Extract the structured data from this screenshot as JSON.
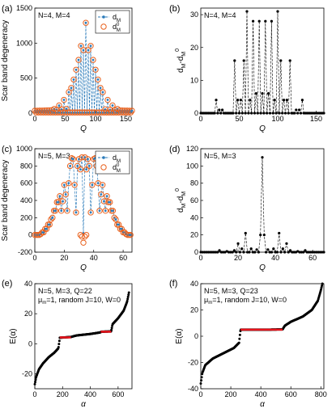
{
  "chart_data": [
    {
      "id": "a",
      "panel_label": "(a)",
      "type": "scatter",
      "annotation": "N=4, M=4",
      "xlabel": "Q",
      "ylabel": "Scar band degeneracy",
      "xlim": [
        0,
        160
      ],
      "ylim": [
        0,
        1500
      ],
      "xticks": [
        0,
        50,
        100,
        150
      ],
      "yticks": [
        0,
        500,
        1000,
        1500
      ],
      "legend": {
        "placement": "top-right",
        "entries": [
          "d",
          "d"
        ],
        "entry_sub": [
          "M",
          "M"
        ],
        "entry_sup": [
          "",
          "0"
        ]
      },
      "colors": {
        "d_M": "#2b7bba",
        "d0_M": "#e8601c"
      },
      "highlights": [
        {
          "x": 84,
          "y": 1290
        },
        {
          "x": 76,
          "y": 960
        },
        {
          "x": 92,
          "y": 960
        },
        {
          "x": 80,
          "y": 900
        },
        {
          "x": 88,
          "y": 900
        },
        {
          "x": 72,
          "y": 760
        },
        {
          "x": 96,
          "y": 760
        },
        {
          "x": 68,
          "y": 620
        },
        {
          "x": 100,
          "y": 620
        },
        {
          "x": 64,
          "y": 480
        },
        {
          "x": 104,
          "y": 480
        },
        {
          "x": 60,
          "y": 360
        },
        {
          "x": 108,
          "y": 360
        },
        {
          "x": 56,
          "y": 300
        },
        {
          "x": 112,
          "y": 300
        },
        {
          "x": 48,
          "y": 190
        },
        {
          "x": 120,
          "y": 190
        },
        {
          "x": 40,
          "y": 110
        },
        {
          "x": 128,
          "y": 110
        },
        {
          "x": 32,
          "y": 60
        },
        {
          "x": 136,
          "y": 60
        }
      ]
    },
    {
      "id": "b",
      "panel_label": "(b)",
      "type": "scatter",
      "annotation": "N=4, M=4",
      "xlabel": "Q",
      "ylabel_parts": {
        "a": "d",
        "a_sub": "M",
        "mid": "-d",
        "b_sub": "M",
        "b_sup": "0"
      },
      "xlim": [
        0,
        160
      ],
      "ylim": [
        0,
        32
      ],
      "xticks": [
        0,
        50,
        100,
        150
      ],
      "yticks": [
        0,
        10,
        20,
        30
      ],
      "spikes": [
        {
          "x": 20,
          "y": 4
        },
        {
          "x": 24,
          "y": 1
        },
        {
          "x": 28,
          "y": 1
        },
        {
          "x": 44,
          "y": 16
        },
        {
          "x": 48,
          "y": 4
        },
        {
          "x": 52,
          "y": 4
        },
        {
          "x": 56,
          "y": 16
        },
        {
          "x": 60,
          "y": 31
        },
        {
          "x": 64,
          "y": 4
        },
        {
          "x": 68,
          "y": 28
        },
        {
          "x": 72,
          "y": 6
        },
        {
          "x": 76,
          "y": 28
        },
        {
          "x": 80,
          "y": 6
        },
        {
          "x": 84,
          "y": 28
        },
        {
          "x": 88,
          "y": 6
        },
        {
          "x": 92,
          "y": 28
        },
        {
          "x": 96,
          "y": 4
        },
        {
          "x": 100,
          "y": 31
        },
        {
          "x": 104,
          "y": 16
        },
        {
          "x": 108,
          "y": 4
        },
        {
          "x": 112,
          "y": 4
        },
        {
          "x": 116,
          "y": 16
        },
        {
          "x": 124,
          "y": 1
        },
        {
          "x": 128,
          "y": 1
        },
        {
          "x": 132,
          "y": 4
        }
      ]
    },
    {
      "id": "c",
      "panel_label": "(c)",
      "type": "scatter",
      "annotation": "N=5, M=3",
      "xlabel": "Q",
      "ylabel": "Scar band degeneracy",
      "xlim": [
        0,
        66
      ],
      "ylim": [
        -200,
        1000
      ],
      "xticks": [
        0,
        20,
        40,
        60
      ],
      "yticks": [
        -200,
        0,
        200,
        400,
        600,
        800,
        1000
      ],
      "legend": {
        "placement": "top-right",
        "entries": [
          "d",
          "d"
        ],
        "entry_sub": [
          "M",
          "M"
        ],
        "entry_sup": [
          "",
          "0"
        ]
      },
      "colors": {
        "d_M": "#2b7bba",
        "d0_M": "#e8601c"
      },
      "d_M": [
        0,
        0,
        0,
        0,
        10,
        30,
        30,
        70,
        70,
        120,
        120,
        180,
        200,
        280,
        280,
        380,
        380,
        450,
        280,
        390,
        580,
        470,
        280,
        600,
        800,
        890,
        880,
        580,
        260,
        800,
        880,
        760,
        900,
        20,
        900,
        760,
        880,
        800,
        260,
        580,
        880,
        890,
        800,
        600,
        280,
        470,
        580,
        390,
        280,
        450,
        380,
        380,
        280,
        280,
        200,
        180,
        120,
        120,
        70,
        70,
        30,
        30,
        10,
        0,
        0,
        0
      ],
      "d0_lower": [
        {
          "x": 31,
          "y": 0
        },
        {
          "x": 32,
          "y": -20
        },
        {
          "x": 33,
          "y": -90
        },
        {
          "x": 34,
          "y": -20
        },
        {
          "x": 35,
          "y": 0
        }
      ]
    },
    {
      "id": "d",
      "panel_label": "(d)",
      "type": "scatter",
      "annotation": "N=5, M=3",
      "xlabel": "Q",
      "ylabel_parts": {
        "a": "d",
        "a_sub": "M",
        "mid": "-d",
        "b_sub": "M",
        "b_sup": "0"
      },
      "xlim": [
        0,
        66
      ],
      "ylim": [
        0,
        120
      ],
      "xticks": [
        0,
        20,
        40,
        60
      ],
      "yticks": [
        0,
        20,
        40,
        60,
        80,
        100,
        120
      ],
      "spikes": [
        {
          "x": 10,
          "y": 2
        },
        {
          "x": 14,
          "y": 1
        },
        {
          "x": 18,
          "y": 2
        },
        {
          "x": 20,
          "y": 10
        },
        {
          "x": 22,
          "y": 4
        },
        {
          "x": 24,
          "y": 22
        },
        {
          "x": 27,
          "y": 4
        },
        {
          "x": 30,
          "y": 3
        },
        {
          "x": 32,
          "y": 20
        },
        {
          "x": 33,
          "y": 110
        },
        {
          "x": 34,
          "y": 20
        },
        {
          "x": 36,
          "y": 3
        },
        {
          "x": 39,
          "y": 4
        },
        {
          "x": 42,
          "y": 22
        },
        {
          "x": 44,
          "y": 4
        },
        {
          "x": 46,
          "y": 10
        },
        {
          "x": 48,
          "y": 2
        },
        {
          "x": 52,
          "y": 1
        },
        {
          "x": 56,
          "y": 2
        }
      ]
    },
    {
      "id": "e",
      "panel_label": "(e)",
      "type": "scatter",
      "annotation_lines": [
        "N=5, M=3, Q=22",
        "=1, random J=10, W=0"
      ],
      "annotation_mu": {
        "base": "μ",
        "sub": "m"
      },
      "xlabel": "α",
      "ylabel": "E(α)",
      "xlim": [
        0,
        700
      ],
      "ylim": [
        -30,
        40
      ],
      "xticks": [
        0,
        200,
        400,
        600
      ],
      "yticks": [
        -20,
        0,
        20,
        40
      ],
      "curve": [
        [
          0,
          -27
        ],
        [
          10,
          -22
        ],
        [
          30,
          -17
        ],
        [
          60,
          -13
        ],
        [
          100,
          -9
        ],
        [
          140,
          -6
        ],
        [
          170,
          -3
        ],
        [
          180,
          4
        ],
        [
          260,
          4.5
        ],
        [
          300,
          5.5
        ],
        [
          400,
          6.5
        ],
        [
          470,
          7.5
        ],
        [
          480,
          8
        ],
        [
          550,
          8.2
        ],
        [
          560,
          13
        ],
        [
          600,
          17
        ],
        [
          640,
          22
        ],
        [
          665,
          28
        ],
        [
          680,
          35
        ]
      ],
      "red_segments": [
        [
          180,
          260,
          4.2
        ],
        [
          475,
          550,
          8
        ]
      ]
    },
    {
      "id": "f",
      "panel_label": "(f)",
      "type": "scatter",
      "annotation_lines": [
        "N=5, M=3, Q=23",
        "=1, random J=10, W=0"
      ],
      "annotation_mu": {
        "base": "μ",
        "sub": "m"
      },
      "xlabel": "α",
      "ylabel": "E(α)",
      "xlim": [
        0,
        820
      ],
      "ylim": [
        -40,
        40
      ],
      "xticks": [
        0,
        200,
        400,
        600,
        800
      ],
      "yticks": [
        -40,
        -20,
        0,
        20,
        40
      ],
      "curve": [
        [
          0,
          -36
        ],
        [
          10,
          -28
        ],
        [
          30,
          -22
        ],
        [
          80,
          -17
        ],
        [
          150,
          -13
        ],
        [
          220,
          -9
        ],
        [
          255,
          -5
        ],
        [
          265,
          5
        ],
        [
          350,
          5
        ],
        [
          450,
          5
        ],
        [
          545,
          5.2
        ],
        [
          560,
          8
        ],
        [
          600,
          11
        ],
        [
          680,
          15
        ],
        [
          740,
          20
        ],
        [
          780,
          27
        ],
        [
          800,
          35
        ],
        [
          810,
          40
        ]
      ],
      "red_segments": [
        [
          265,
          545,
          5
        ]
      ]
    }
  ]
}
